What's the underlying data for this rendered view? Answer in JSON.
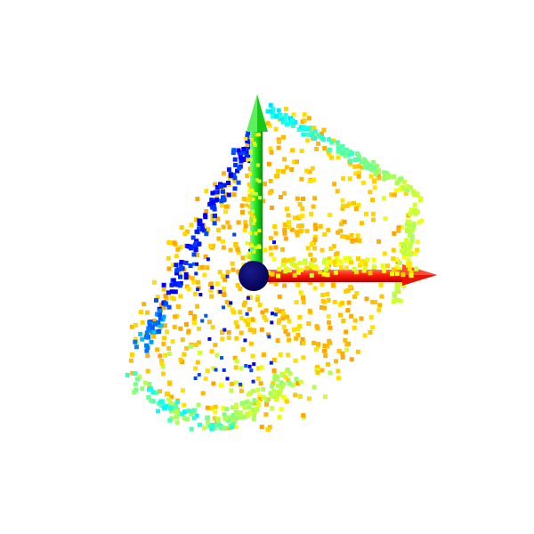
{
  "scene": {
    "background": "#ffffff",
    "point_count": 1100,
    "point_marker": "square",
    "colormap": "jet",
    "colormap_stops": [
      "#00007f",
      "#0000ff",
      "#0080ff",
      "#00ffff",
      "#80ff80",
      "#ffff00",
      "#ff8000",
      "#ff0000"
    ],
    "dominant_colors": [
      "#ff8000",
      "#ffa500",
      "#ffff00",
      "#00ffff",
      "#0000ff"
    ]
  },
  "axes": {
    "x_axis": {
      "color": "#ff0000",
      "direction": "right"
    },
    "y_axis": {
      "color": "#00ff00",
      "direction": "up"
    },
    "origin_marker": {
      "color": "#000066",
      "shape": "sphere"
    }
  }
}
